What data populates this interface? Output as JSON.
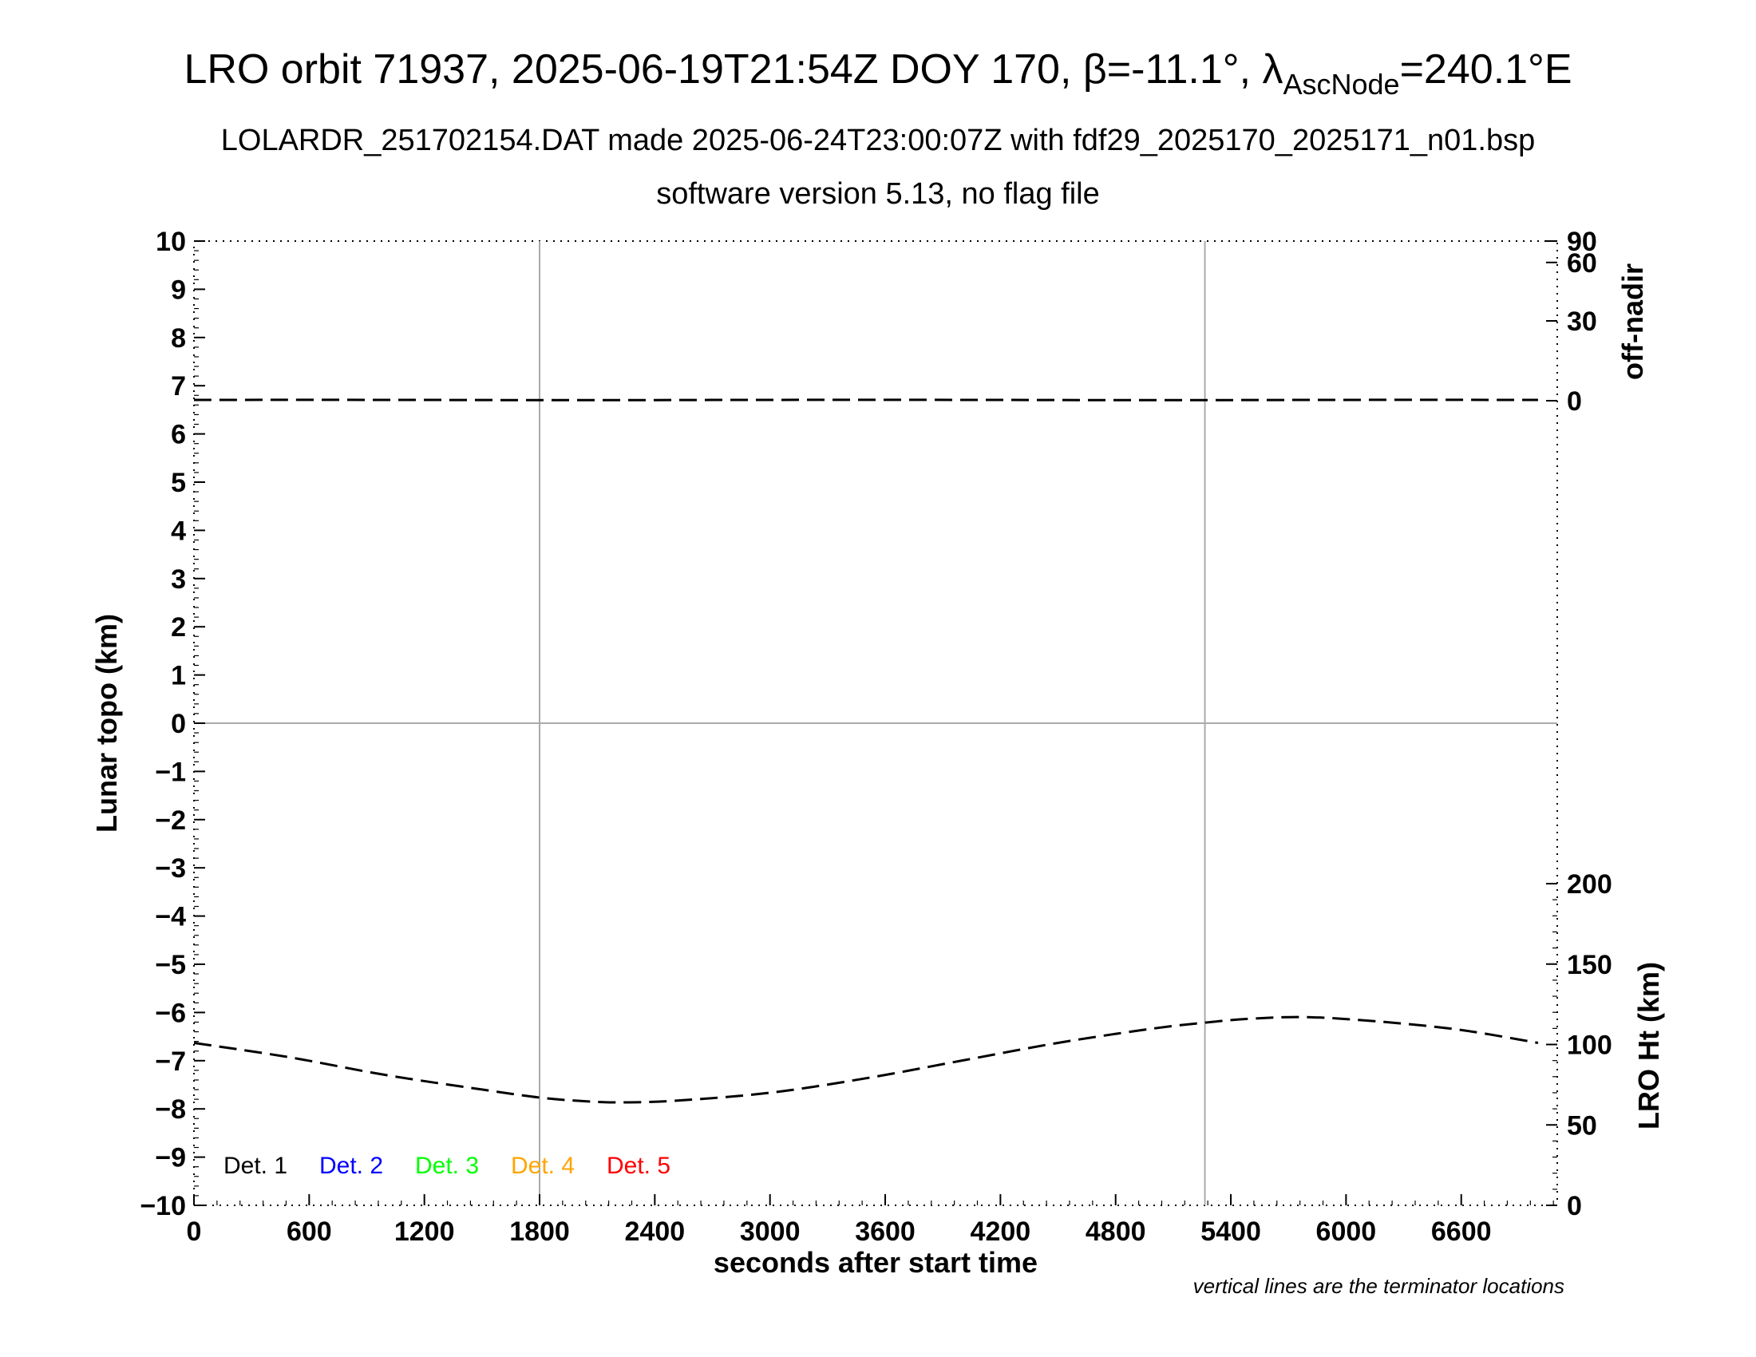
{
  "title": {
    "main_prefix": "LRO orbit 71937, 2025-06-19T21:54Z DOY 170, ",
    "beta": "β=-11.1°, ",
    "lambda": "λ",
    "lambda_sub": "AscNode",
    "lambda_val": "=240.1°E",
    "subtitle1": "LOLARDR_251702154.DAT made 2025-06-24T23:00:07Z with fdf29_2025170_2025171_n01.bsp",
    "subtitle2": "software version 5.13, no flag file"
  },
  "note": "vertical lines are the terminator locations",
  "chart_data": {
    "type": "line",
    "xlabel": "seconds after start time",
    "ylabel_left": "Lunar topo (km)",
    "ylabel_right_top": "off-nadir",
    "ylabel_right_bottom": "LRO Ht (km)",
    "xlim": [
      0,
      7100
    ],
    "ylim": [
      -10,
      10
    ],
    "x_ticks": [
      "0",
      "600",
      "1200",
      "1800",
      "2400",
      "3000",
      "3600",
      "4200",
      "4800",
      "5400",
      "6000",
      "6600"
    ],
    "x_tick_values": [
      0,
      600,
      1200,
      1800,
      2400,
      3000,
      3600,
      4200,
      4800,
      5400,
      6000,
      6600
    ],
    "y_ticks": [
      "10",
      "9",
      "8",
      "7",
      "6",
      "5",
      "4",
      "3",
      "2",
      "1",
      "0",
      "−1",
      "−2",
      "−3",
      "−4",
      "−5",
      "−6",
      "−7",
      "−8",
      "−9",
      "−10"
    ],
    "y_tick_values": [
      10,
      9,
      8,
      7,
      6,
      5,
      4,
      3,
      2,
      1,
      0,
      -1,
      -2,
      -3,
      -4,
      -5,
      -6,
      -7,
      -8,
      -9,
      -10
    ],
    "off_nadir_ticks": [
      "90",
      "60",
      "30",
      "0"
    ],
    "off_nadir_tick_values": [
      90,
      60,
      30,
      0
    ],
    "lro_ht_ticks": [
      "200",
      "150",
      "100",
      "50",
      "0"
    ],
    "lro_ht_tick_values": [
      200,
      150,
      100,
      50,
      0
    ],
    "terminators_s": [
      1800,
      5265
    ],
    "grid": "zero line and terminator lines only",
    "legend_position": "bottom-left",
    "legend": [
      {
        "label": "Det. 1",
        "color": "#000000"
      },
      {
        "label": "Det. 2",
        "color": "#0000ff"
      },
      {
        "label": "Det. 3",
        "color": "#00ff00"
      },
      {
        "label": "Det. 4",
        "color": "#ffa500"
      },
      {
        "label": "Det. 5",
        "color": "#ff0000"
      }
    ],
    "series": [
      {
        "name": "off-nadir",
        "axis": "off-nadir",
        "style": "dashed",
        "color": "#000000",
        "x": [
          0,
          1000,
          2000,
          3000,
          4000,
          5000,
          6000,
          7000
        ],
        "values": [
          0.3,
          0.3,
          0.2,
          0.3,
          0.3,
          0.2,
          0.3,
          0.3
        ]
      },
      {
        "name": "LRO Ht",
        "axis": "LRO Ht (km)",
        "style": "dashed",
        "color": "#000000",
        "x": [
          0,
          500,
          1000,
          1500,
          1800,
          2000,
          2200,
          2500,
          3000,
          3500,
          4000,
          4500,
          5000,
          5300,
          5500,
          5800,
          6200,
          6600,
          7000
        ],
        "values": [
          101,
          92,
          81,
          72,
          67,
          65,
          64,
          65,
          70,
          79,
          90,
          101,
          110,
          114,
          116,
          117,
          114,
          109,
          101
        ]
      }
    ]
  }
}
